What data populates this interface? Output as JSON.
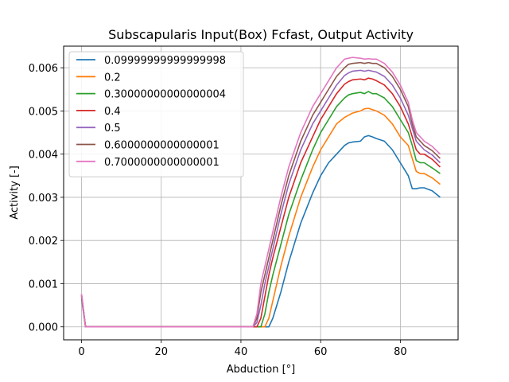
{
  "chart_data": {
    "type": "line",
    "title": "Subscapularis Input(Box) Fcfast, Output Activity",
    "xlabel": "Abduction [°]",
    "ylabel": "Activity [-]",
    "xlim": [
      -4.5,
      94.5
    ],
    "ylim": [
      -0.0003,
      0.0065
    ],
    "xticks": [
      0,
      20,
      40,
      60,
      80
    ],
    "xtick_labels": [
      "0",
      "20",
      "40",
      "60",
      "80"
    ],
    "yticks": [
      0.0,
      0.001,
      0.002,
      0.003,
      0.004,
      0.005,
      0.006
    ],
    "ytick_labels": [
      "0.000",
      "0.001",
      "0.002",
      "0.003",
      "0.004",
      "0.005",
      "0.006"
    ],
    "grid": true,
    "legend_position": "top-left",
    "x": [
      0,
      1,
      2,
      10,
      20,
      30,
      40,
      43,
      44,
      45,
      46,
      47,
      48,
      50,
      52,
      55,
      58,
      60,
      62,
      64,
      66,
      67,
      68,
      70,
      71,
      72,
      73,
      74,
      76,
      78,
      80,
      82,
      83,
      84,
      85,
      86,
      88,
      90
    ],
    "series": [
      {
        "name": "0.09999999999999998",
        "color": "#1f77b4",
        "values": [
          0.00065,
          0.0,
          0.0,
          0.0,
          0.0,
          0.0,
          0.0,
          0.0,
          0.0,
          0.0,
          0.0,
          0.0,
          0.0002,
          0.0008,
          0.0015,
          0.0024,
          0.0031,
          0.0035,
          0.0038,
          0.004,
          0.0042,
          0.00426,
          0.00428,
          0.0043,
          0.0044,
          0.00443,
          0.0044,
          0.00436,
          0.0043,
          0.0041,
          0.0038,
          0.0035,
          0.0032,
          0.0032,
          0.00322,
          0.00322,
          0.00315,
          0.003
        ]
      },
      {
        "name": "0.2",
        "color": "#ff7f0e",
        "values": [
          0.0007,
          0.0,
          0.0,
          0.0,
          0.0,
          0.0,
          0.0,
          0.0,
          0.0,
          0.0,
          0.0,
          0.0002,
          0.0006,
          0.0014,
          0.0021,
          0.003,
          0.0037,
          0.0041,
          0.0044,
          0.0047,
          0.00485,
          0.0049,
          0.00495,
          0.005,
          0.00505,
          0.00506,
          0.00503,
          0.005,
          0.0049,
          0.0047,
          0.0044,
          0.0042,
          0.0039,
          0.0036,
          0.00355,
          0.00355,
          0.00345,
          0.0033
        ]
      },
      {
        "name": "0.30000000000000004",
        "color": "#2ca02c",
        "values": [
          0.00071,
          0.0,
          0.0,
          0.0,
          0.0,
          0.0,
          0.0,
          0.0,
          0.0,
          0.0,
          0.0003,
          0.0008,
          0.0012,
          0.0019,
          0.0026,
          0.0034,
          0.0041,
          0.0045,
          0.0048,
          0.0051,
          0.0053,
          0.00537,
          0.0054,
          0.00543,
          0.0054,
          0.00545,
          0.0054,
          0.0054,
          0.0053,
          0.0051,
          0.0048,
          0.0045,
          0.0042,
          0.00385,
          0.0038,
          0.0038,
          0.00368,
          0.00355
        ]
      },
      {
        "name": "0.4",
        "color": "#d62728",
        "values": [
          0.00073,
          0.0,
          0.0,
          0.0,
          0.0,
          0.0,
          0.0,
          0.0,
          0.0,
          0.0002,
          0.0007,
          0.0012,
          0.0016,
          0.0023,
          0.003,
          0.0038,
          0.0044,
          0.0048,
          0.0051,
          0.0054,
          0.00562,
          0.00568,
          0.00572,
          0.00574,
          0.00572,
          0.00576,
          0.00574,
          0.0057,
          0.0056,
          0.0054,
          0.0051,
          0.0047,
          0.0044,
          0.0041,
          0.004,
          0.004,
          0.00388,
          0.0037
        ]
      },
      {
        "name": "0.5",
        "color": "#9467bd",
        "values": [
          0.00074,
          0.0,
          0.0,
          0.0,
          0.0,
          0.0,
          0.0,
          0.0,
          0.0001,
          0.0005,
          0.001,
          0.0014,
          0.0018,
          0.0026,
          0.0033,
          0.0041,
          0.0047,
          0.005,
          0.0053,
          0.0056,
          0.00582,
          0.00588,
          0.00592,
          0.00594,
          0.00592,
          0.00594,
          0.00592,
          0.0059,
          0.0058,
          0.0056,
          0.0053,
          0.0049,
          0.0046,
          0.0043,
          0.0042,
          0.0041,
          0.00398,
          0.0038
        ]
      },
      {
        "name": "0.6000000000000001",
        "color": "#8c564b",
        "values": [
          0.00075,
          0.0,
          0.0,
          0.0,
          0.0,
          0.0,
          0.0,
          0.0,
          0.0002,
          0.0008,
          0.0012,
          0.0016,
          0.002,
          0.0028,
          0.0035,
          0.0043,
          0.0049,
          0.0052,
          0.0055,
          0.0058,
          0.006,
          0.00608,
          0.0061,
          0.00612,
          0.0061,
          0.00612,
          0.0061,
          0.0061,
          0.006,
          0.0058,
          0.0055,
          0.0051,
          0.0047,
          0.0044,
          0.0043,
          0.0042,
          0.00408,
          0.0039
        ]
      },
      {
        "name": "0.7000000000000001",
        "color": "#e377c2",
        "values": [
          0.00076,
          0.0,
          0.0,
          0.0,
          0.0,
          0.0,
          0.0,
          0.0,
          0.0003,
          0.001,
          0.0014,
          0.0018,
          0.0022,
          0.003,
          0.0037,
          0.0045,
          0.0051,
          0.0054,
          0.0057,
          0.006,
          0.0062,
          0.00622,
          0.00624,
          0.00622,
          0.0062,
          0.00621,
          0.0062,
          0.0062,
          0.0061,
          0.0059,
          0.0056,
          0.0052,
          0.0048,
          0.0045,
          0.0044,
          0.0043,
          0.00418,
          0.004
        ]
      }
    ]
  }
}
